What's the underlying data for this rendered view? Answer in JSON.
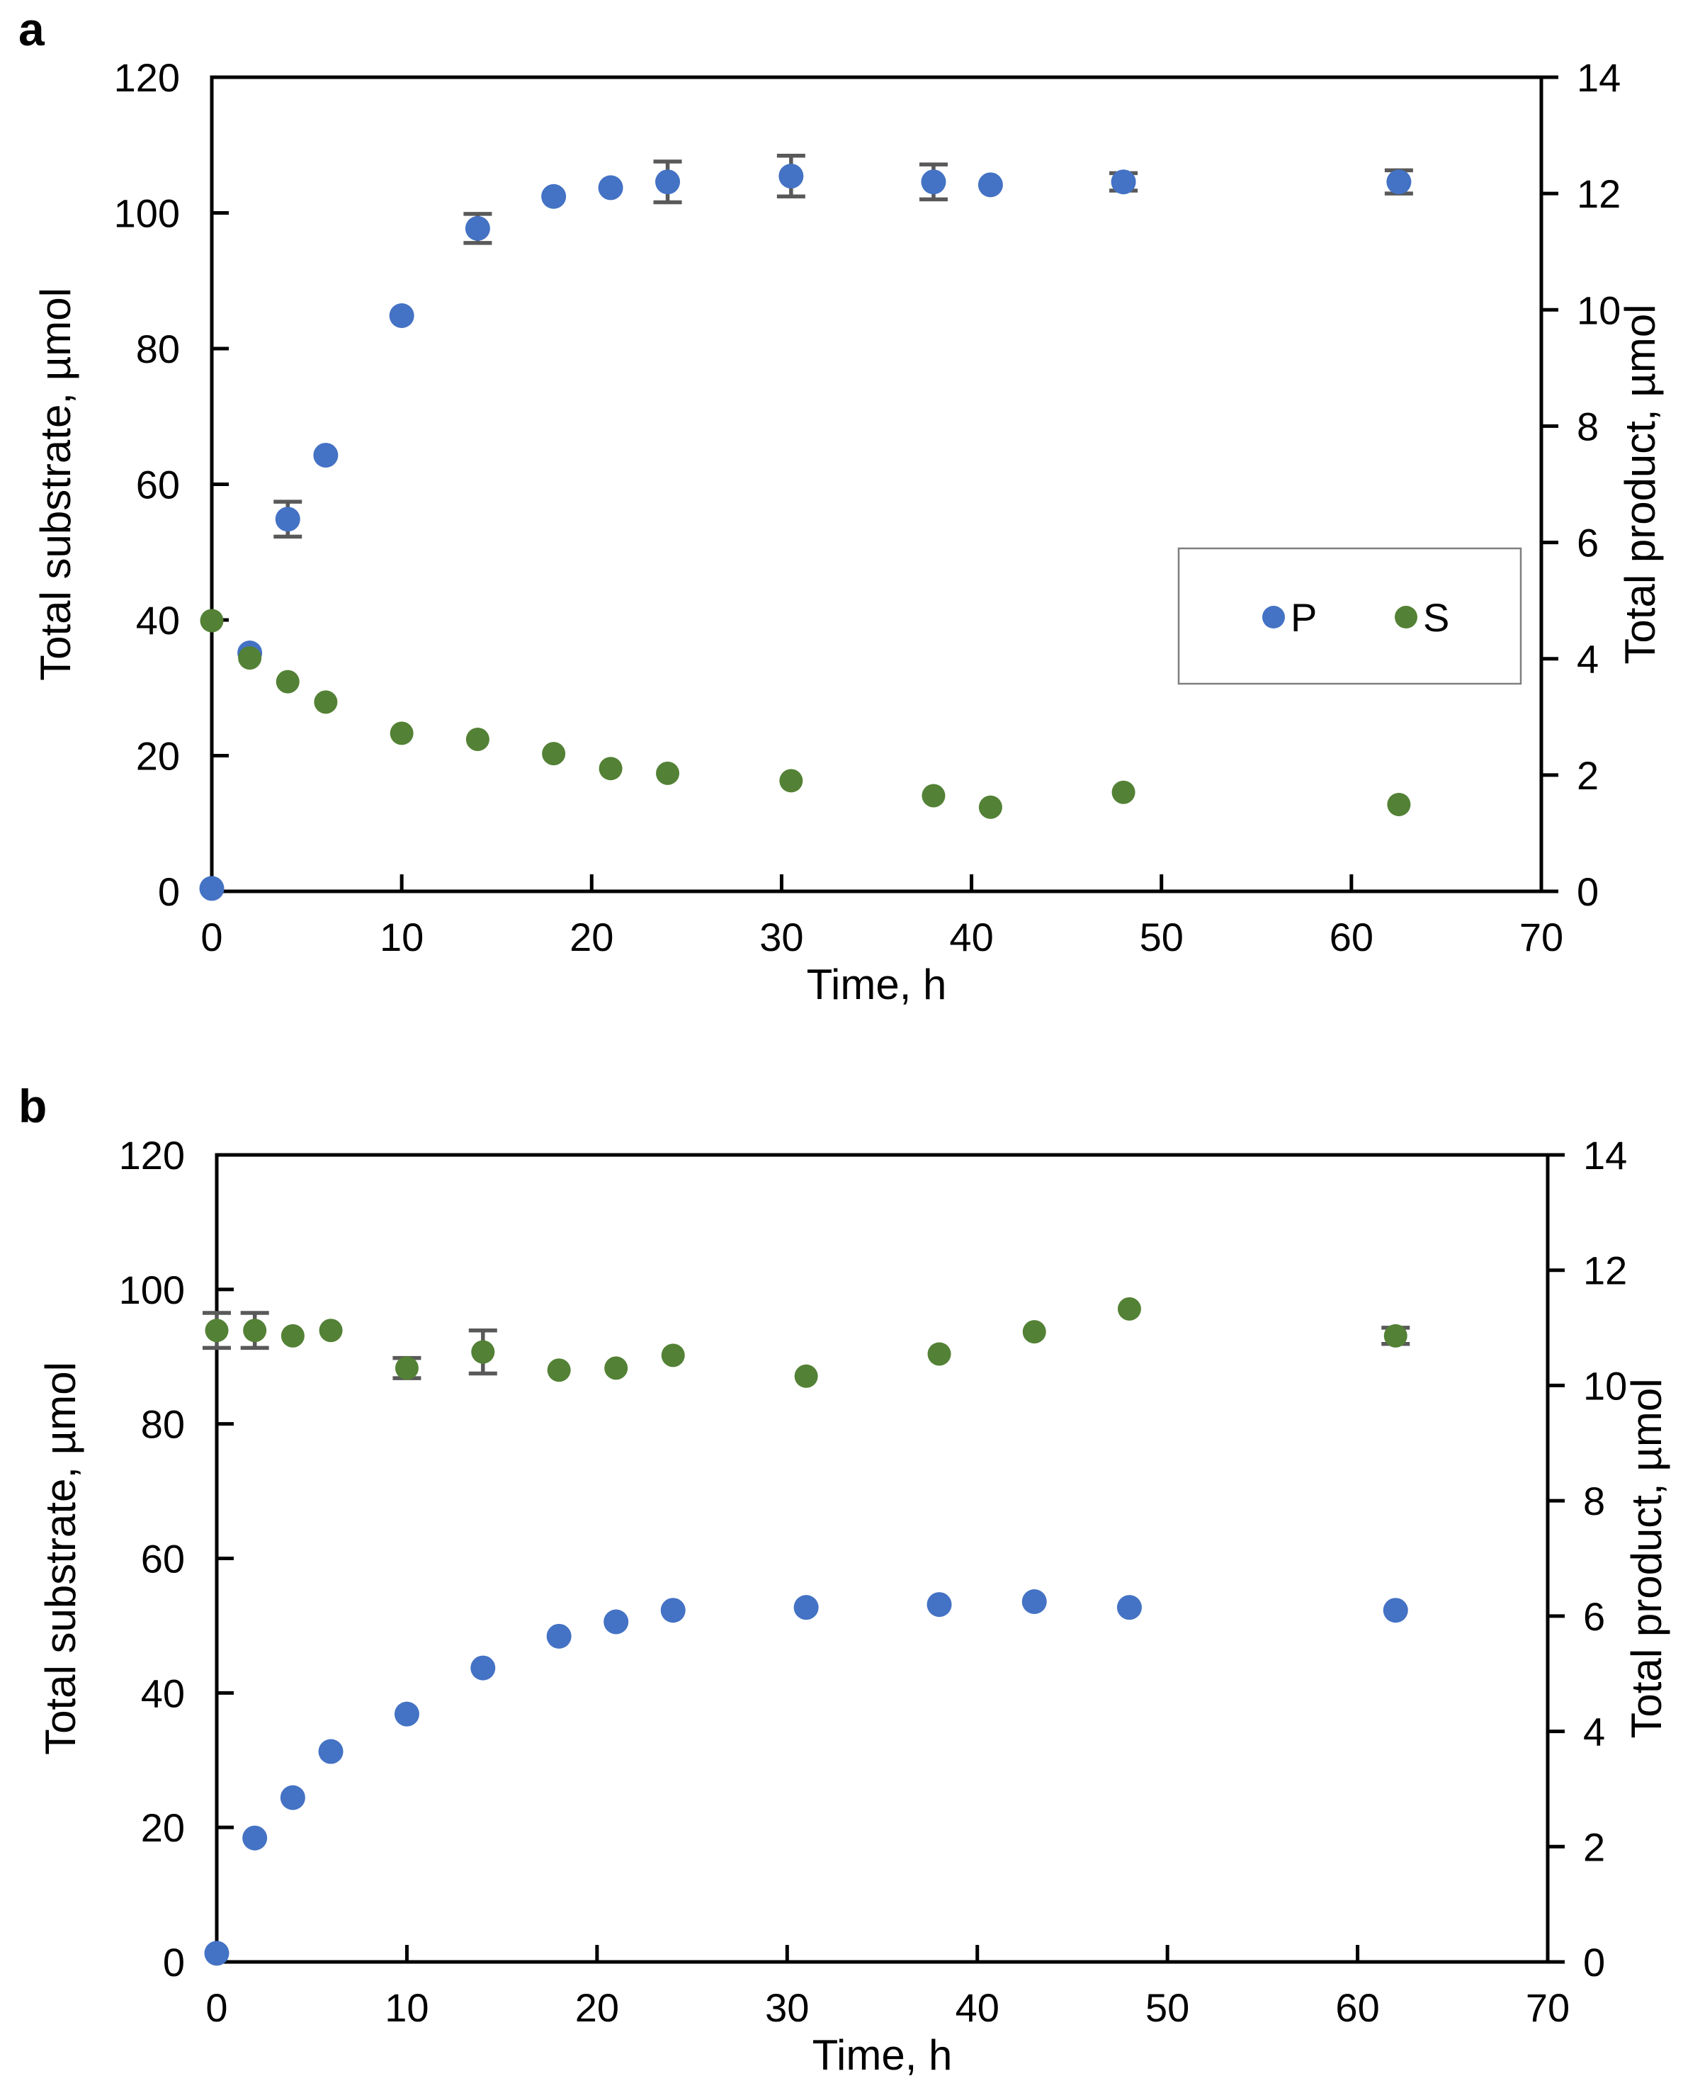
{
  "figure": {
    "background": "#ffffff",
    "colors": {
      "product_blue": "#4472C4",
      "substrate_green": "#538135",
      "error_bar_gray": "#595959",
      "axis_black": "#000000"
    }
  },
  "chart_data": [
    {
      "type": "scatter",
      "panel_label": "a",
      "xlabel": "Time, h",
      "ylabel_left": "Total substrate, µmol",
      "ylabel_right": "Total product, µmol",
      "xlim": [
        0,
        70
      ],
      "xticks": [
        0,
        10,
        20,
        30,
        40,
        50,
        60,
        70
      ],
      "ylim_left": [
        0,
        120
      ],
      "yticks_left": [
        0,
        20,
        40,
        60,
        80,
        100,
        120
      ],
      "ylim_right": [
        0,
        14
      ],
      "yticks_right": [
        0,
        2,
        4,
        6,
        8,
        10,
        12,
        14
      ],
      "grid": false,
      "legend": {
        "position": "inside-right",
        "items": [
          "P",
          "S"
        ]
      },
      "series": [
        {
          "name": "P",
          "color": "#4472C4",
          "axis": "right",
          "marker": "circle",
          "points": [
            {
              "t": 0,
              "v": 0.05
            },
            {
              "t": 2,
              "v": 4.1
            },
            {
              "t": 4,
              "v": 6.4,
              "err": 0.3
            },
            {
              "t": 6,
              "v": 7.5
            },
            {
              "t": 10,
              "v": 9.9
            },
            {
              "t": 14,
              "v": 11.4,
              "err": 0.25
            },
            {
              "t": 18,
              "v": 11.95
            },
            {
              "t": 21,
              "v": 12.1
            },
            {
              "t": 24,
              "v": 12.2,
              "err": 0.35
            },
            {
              "t": 30.5,
              "v": 12.3,
              "err": 0.35
            },
            {
              "t": 38,
              "v": 12.2,
              "err": 0.3
            },
            {
              "t": 41,
              "v": 12.15
            },
            {
              "t": 48,
              "v": 12.2,
              "err": 0.15
            },
            {
              "t": 62.5,
              "v": 12.2,
              "err": 0.2
            }
          ]
        },
        {
          "name": "S",
          "color": "#538135",
          "axis": "left",
          "marker": "circle",
          "points": [
            {
              "t": 0,
              "v": 39.9
            },
            {
              "t": 2,
              "v": 34.4
            },
            {
              "t": 4,
              "v": 30.9
            },
            {
              "t": 6,
              "v": 27.9
            },
            {
              "t": 10,
              "v": 23.3
            },
            {
              "t": 14,
              "v": 22.4
            },
            {
              "t": 18,
              "v": 20.3
            },
            {
              "t": 21,
              "v": 18.1
            },
            {
              "t": 24,
              "v": 17.4
            },
            {
              "t": 30.5,
              "v": 16.3
            },
            {
              "t": 38,
              "v": 14.1
            },
            {
              "t": 41,
              "v": 12.4
            },
            {
              "t": 48,
              "v": 14.6
            },
            {
              "t": 62.5,
              "v": 12.8
            }
          ]
        }
      ]
    },
    {
      "type": "scatter",
      "panel_label": "b",
      "xlabel": "Time, h",
      "ylabel_left": "Total substrate, µmol",
      "ylabel_right": "Total product, µmol",
      "xlim": [
        0,
        70
      ],
      "xticks": [
        0,
        10,
        20,
        30,
        40,
        50,
        60,
        70
      ],
      "ylim_left": [
        0,
        120
      ],
      "yticks_left": [
        0,
        20,
        40,
        60,
        80,
        100,
        120
      ],
      "ylim_right": [
        0,
        14
      ],
      "yticks_right": [
        0,
        2,
        4,
        6,
        8,
        10,
        12,
        14
      ],
      "grid": false,
      "legend": null,
      "series": [
        {
          "name": "P",
          "color": "#4472C4",
          "axis": "right",
          "marker": "circle",
          "points": [
            {
              "t": 0,
              "v": 0.15
            },
            {
              "t": 2,
              "v": 2.15
            },
            {
              "t": 4,
              "v": 2.85
            },
            {
              "t": 6,
              "v": 3.65
            },
            {
              "t": 10,
              "v": 4.3
            },
            {
              "t": 14,
              "v": 5.1
            },
            {
              "t": 18,
              "v": 5.65
            },
            {
              "t": 21,
              "v": 5.9
            },
            {
              "t": 24,
              "v": 6.1
            },
            {
              "t": 31,
              "v": 6.15
            },
            {
              "t": 38,
              "v": 6.2
            },
            {
              "t": 43,
              "v": 6.25
            },
            {
              "t": 48,
              "v": 6.15
            },
            {
              "t": 62,
              "v": 6.1
            }
          ]
        },
        {
          "name": "S",
          "color": "#538135",
          "axis": "left",
          "marker": "circle",
          "points": [
            {
              "t": 0,
              "v": 93.9,
              "err": 2.6
            },
            {
              "t": 2,
              "v": 93.9,
              "err": 2.6
            },
            {
              "t": 4,
              "v": 93.1
            },
            {
              "t": 6,
              "v": 93.9
            },
            {
              "t": 10,
              "v": 88.3,
              "err": 1.5
            },
            {
              "t": 14,
              "v": 90.7,
              "err": 3.2
            },
            {
              "t": 18,
              "v": 88.0
            },
            {
              "t": 21,
              "v": 88.3
            },
            {
              "t": 24,
              "v": 90.2
            },
            {
              "t": 31,
              "v": 87.1
            },
            {
              "t": 38,
              "v": 90.4
            },
            {
              "t": 43,
              "v": 93.7
            },
            {
              "t": 48,
              "v": 97.1
            },
            {
              "t": 62,
              "v": 93.1,
              "err": 1.2
            }
          ]
        }
      ]
    }
  ]
}
